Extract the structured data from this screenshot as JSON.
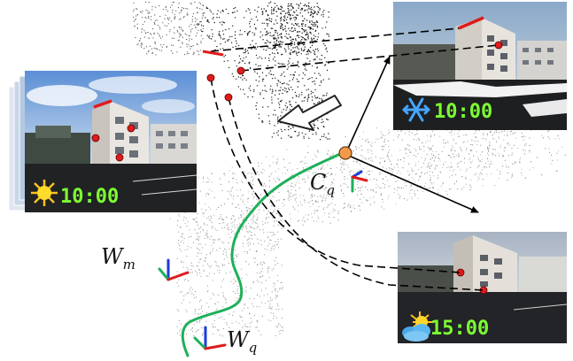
{
  "labels": {
    "camera_query": {
      "main": "C",
      "sub": "q"
    },
    "world_map": {
      "main": "W",
      "sub": "m"
    },
    "world_query": {
      "main": "W",
      "sub": "q"
    }
  },
  "images": {
    "left_stack": {
      "clock": "10:00",
      "weather_icon": "sun-icon"
    },
    "top_right": {
      "clock": "10:00",
      "weather_icon": "snowflake-icon"
    },
    "bottom_right": {
      "clock": "15:00",
      "weather_icon": "sun-cloud-icon"
    }
  },
  "colors": {
    "trajectory": "#1fb05a",
    "clock_text": "#7dff32",
    "feature_point": "#e01b1b",
    "feature_line": "#e01b1b",
    "camera_marker": "#f39a4a",
    "axis_x": "#e01b1b",
    "axis_y": "#1fb05a",
    "axis_z": "#1a3ed6"
  }
}
